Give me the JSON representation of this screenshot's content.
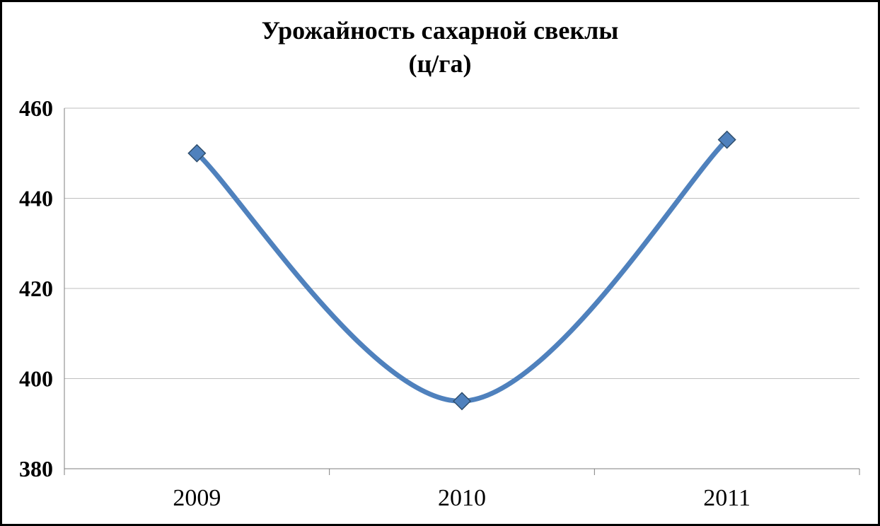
{
  "chart_data": {
    "type": "line",
    "title": "Урожайность сахарной свеклы",
    "subtitle": "(ц/га)",
    "categories": [
      "2009",
      "2010",
      "2011"
    ],
    "series": [
      {
        "name": "Урожайность сахарной свеклы",
        "values": [
          450,
          395,
          453
        ]
      }
    ],
    "xlabel": "",
    "ylabel": "",
    "ylim": [
      380,
      460
    ],
    "yticks": [
      380,
      400,
      420,
      440,
      460
    ],
    "grid": true,
    "legend_position": "none",
    "smooth": true,
    "marker": "diamond",
    "line_color": "#4f81bd",
    "marker_fill": "#4f81bd",
    "marker_stroke": "#2e4d6b",
    "gridline_color": "#bfbfbf",
    "axis_color": "#7f7f7f"
  }
}
